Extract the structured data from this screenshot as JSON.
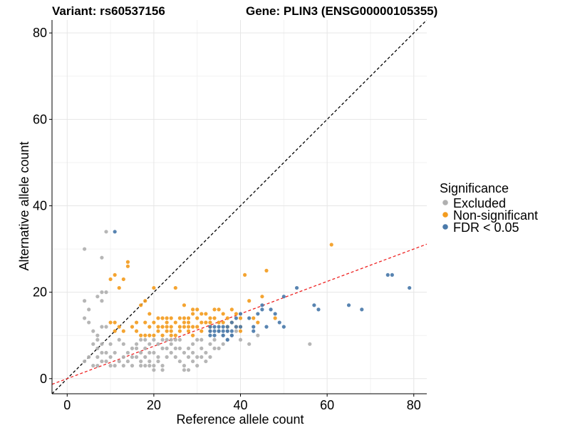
{
  "chart_data": {
    "type": "scatter",
    "title_left": "Variant: rs60537156",
    "title_right": "Gene: PLIN3 (ENSG00000105355)",
    "xlabel": "Reference allele count",
    "ylabel": "Alternative allele count",
    "xlim": [
      -3.5,
      83
    ],
    "ylim": [
      -3.5,
      83
    ],
    "xticks": [
      0,
      20,
      40,
      60,
      80
    ],
    "yticks": [
      0,
      20,
      40,
      60,
      80
    ],
    "grid": true,
    "legend": {
      "title": "Significance",
      "placement": "right",
      "entries": [
        {
          "label": "Excluded",
          "color": "#b0b0b0"
        },
        {
          "label": "Non-significant",
          "color": "#f39c1f"
        },
        {
          "label": "FDR < 0.05",
          "color": "#4a7aaa"
        }
      ]
    },
    "reference_lines": [
      {
        "name": "identity",
        "slope": 1,
        "intercept": 0,
        "color": "#000000",
        "style": "dashed"
      },
      {
        "name": "expected-ratio",
        "slope": 0.375,
        "intercept": 0,
        "color": "#ee2222",
        "style": "dashed"
      }
    ],
    "series": [
      {
        "name": "Excluded",
        "color": "#b0b0b0",
        "points": [
          [
            4,
            30
          ],
          [
            9,
            34
          ],
          [
            8,
            28
          ],
          [
            4,
            18
          ],
          [
            5,
            16
          ],
          [
            4,
            14
          ],
          [
            7,
            19
          ],
          [
            8,
            20
          ],
          [
            9,
            20
          ],
          [
            8,
            18
          ],
          [
            5,
            13
          ],
          [
            6,
            11
          ],
          [
            7,
            10
          ],
          [
            8,
            12
          ],
          [
            9,
            12
          ],
          [
            7,
            9
          ],
          [
            6,
            8
          ],
          [
            7,
            7
          ],
          [
            8,
            6
          ],
          [
            5,
            5
          ],
          [
            4,
            4
          ],
          [
            7,
            5
          ],
          [
            8,
            4
          ],
          [
            6,
            3
          ],
          [
            9,
            6
          ],
          [
            10,
            5
          ],
          [
            11,
            3
          ],
          [
            10,
            3
          ],
          [
            12,
            4
          ],
          [
            13,
            5
          ],
          [
            13,
            3
          ],
          [
            14,
            4
          ],
          [
            15,
            5
          ],
          [
            14,
            6
          ],
          [
            15,
            7
          ],
          [
            16,
            8
          ],
          [
            17,
            6
          ],
          [
            17,
            4
          ],
          [
            17,
            3
          ],
          [
            18,
            5
          ],
          [
            18,
            7
          ],
          [
            19,
            8
          ],
          [
            20,
            9
          ],
          [
            20,
            6
          ],
          [
            21,
            5
          ],
          [
            21,
            4
          ],
          [
            22,
            3
          ],
          [
            22,
            2
          ],
          [
            23,
            5
          ],
          [
            23,
            7
          ],
          [
            24,
            8
          ],
          [
            24,
            6
          ],
          [
            25,
            5
          ],
          [
            25,
            7
          ],
          [
            26,
            9
          ],
          [
            26,
            4
          ],
          [
            27,
            3
          ],
          [
            27,
            2
          ],
          [
            28,
            2
          ],
          [
            28,
            5
          ],
          [
            29,
            6
          ],
          [
            29,
            8
          ],
          [
            30,
            3
          ],
          [
            30,
            5
          ],
          [
            31,
            7
          ],
          [
            31,
            9
          ],
          [
            32,
            4
          ],
          [
            32,
            6
          ],
          [
            33,
            8
          ],
          [
            34,
            9
          ],
          [
            35,
            7
          ],
          [
            36,
            8
          ],
          [
            37,
            9
          ],
          [
            38,
            10
          ],
          [
            39,
            11
          ],
          [
            40,
            9
          ],
          [
            42,
            8
          ],
          [
            18,
            3
          ],
          [
            19,
            3
          ],
          [
            20,
            3
          ],
          [
            17,
            9
          ],
          [
            16,
            7
          ],
          [
            18,
            9
          ],
          [
            19,
            6
          ],
          [
            22,
            7
          ],
          [
            22,
            9
          ],
          [
            21,
            8
          ],
          [
            23,
            9
          ],
          [
            24,
            9
          ],
          [
            25,
            9
          ],
          [
            26,
            7
          ],
          [
            27,
            6
          ],
          [
            28,
            7
          ],
          [
            29,
            4
          ],
          [
            30,
            9
          ],
          [
            31,
            5
          ],
          [
            33,
            5
          ],
          [
            34,
            7
          ],
          [
            19,
            4
          ],
          [
            20,
            2
          ],
          [
            16,
            5
          ],
          [
            15,
            3
          ],
          [
            13,
            8
          ],
          [
            12,
            9
          ],
          [
            11,
            6
          ],
          [
            10,
            8
          ],
          [
            9,
            4
          ],
          [
            8,
            8
          ],
          [
            7,
            3
          ],
          [
            56,
            8
          ],
          [
            44,
            10
          ],
          [
            33,
            11
          ],
          [
            35,
            11
          ],
          [
            36,
            10
          ],
          [
            37,
            11
          ]
        ]
      },
      {
        "name": "Non-significant",
        "color": "#f39c1f",
        "points": [
          [
            10,
            23
          ],
          [
            11,
            24
          ],
          [
            13,
            23
          ],
          [
            14,
            27
          ],
          [
            14,
            26
          ],
          [
            12,
            21
          ],
          [
            11,
            13
          ],
          [
            12,
            12
          ],
          [
            13,
            11
          ],
          [
            15,
            12
          ],
          [
            16,
            13
          ],
          [
            16,
            11
          ],
          [
            17,
            17
          ],
          [
            17,
            10
          ],
          [
            18,
            18
          ],
          [
            18,
            10
          ],
          [
            19,
            10
          ],
          [
            19,
            15
          ],
          [
            20,
            21
          ],
          [
            20,
            10
          ],
          [
            21,
            12
          ],
          [
            21,
            11
          ],
          [
            22,
            14
          ],
          [
            22,
            10
          ],
          [
            23,
            13
          ],
          [
            23,
            12
          ],
          [
            23,
            11
          ],
          [
            24,
            14
          ],
          [
            24,
            12
          ],
          [
            24,
            11
          ],
          [
            24,
            10
          ],
          [
            25,
            21
          ],
          [
            25,
            13
          ],
          [
            25,
            10
          ],
          [
            26,
            12
          ],
          [
            26,
            11
          ],
          [
            27,
            17
          ],
          [
            27,
            14
          ],
          [
            27,
            13
          ],
          [
            27,
            12
          ],
          [
            28,
            14
          ],
          [
            28,
            13
          ],
          [
            28,
            11
          ],
          [
            29,
            16
          ],
          [
            29,
            15
          ],
          [
            29,
            12
          ],
          [
            29,
            10
          ],
          [
            30,
            14
          ],
          [
            30,
            12
          ],
          [
            31,
            13
          ],
          [
            31,
            11
          ],
          [
            32,
            15
          ],
          [
            32,
            13
          ],
          [
            33,
            13
          ],
          [
            33,
            12
          ],
          [
            34,
            16
          ],
          [
            34,
            14
          ],
          [
            35,
            13
          ],
          [
            36,
            15
          ],
          [
            37,
            12
          ],
          [
            38,
            13
          ],
          [
            39,
            12
          ],
          [
            40,
            14
          ],
          [
            40,
            11
          ],
          [
            41,
            24
          ],
          [
            42,
            18
          ],
          [
            43,
            14
          ],
          [
            44,
            13
          ],
          [
            45,
            19
          ],
          [
            46,
            25
          ],
          [
            48,
            14
          ],
          [
            61,
            31
          ],
          [
            18,
            13
          ],
          [
            19,
            12
          ],
          [
            20,
            13
          ],
          [
            21,
            14
          ],
          [
            22,
            12
          ],
          [
            23,
            14
          ],
          [
            26,
            14
          ],
          [
            28,
            12
          ],
          [
            30,
            16
          ],
          [
            31,
            15
          ],
          [
            33,
            14
          ],
          [
            35,
            16
          ],
          [
            36,
            13
          ],
          [
            37,
            14
          ],
          [
            38,
            16
          ],
          [
            39,
            15
          ],
          [
            40,
            12
          ],
          [
            10,
            13
          ],
          [
            11,
            11
          ]
        ]
      },
      {
        "name": "FDR < 0.05",
        "color": "#4a7aaa",
        "points": [
          [
            11,
            34
          ],
          [
            33,
            12
          ],
          [
            33,
            11
          ],
          [
            33,
            10
          ],
          [
            34,
            12
          ],
          [
            34,
            11
          ],
          [
            34,
            10
          ],
          [
            35,
            12
          ],
          [
            35,
            11
          ],
          [
            36,
            12
          ],
          [
            36,
            11
          ],
          [
            36,
            10
          ],
          [
            37,
            12
          ],
          [
            37,
            11
          ],
          [
            38,
            11
          ],
          [
            38,
            10
          ],
          [
            39,
            12
          ],
          [
            40,
            12
          ],
          [
            38,
            13
          ],
          [
            39,
            14
          ],
          [
            40,
            15
          ],
          [
            42,
            14
          ],
          [
            43,
            12
          ],
          [
            43,
            11
          ],
          [
            44,
            15
          ],
          [
            45,
            17
          ],
          [
            45,
            16
          ],
          [
            46,
            12
          ],
          [
            47,
            16
          ],
          [
            48,
            15
          ],
          [
            49,
            13
          ],
          [
            50,
            19
          ],
          [
            50,
            12
          ],
          [
            53,
            21
          ],
          [
            57,
            17
          ],
          [
            58,
            16
          ],
          [
            65,
            17
          ],
          [
            68,
            16
          ],
          [
            74,
            24
          ],
          [
            75,
            24
          ],
          [
            79,
            21
          ],
          [
            37,
            9
          ]
        ]
      }
    ]
  }
}
